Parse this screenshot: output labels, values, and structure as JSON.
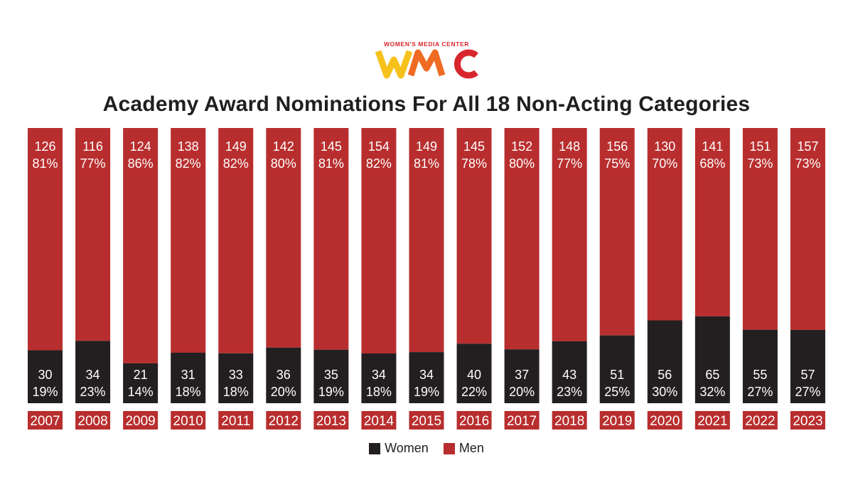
{
  "logo": {
    "text": "WOMEN'S MEDIA CENTER",
    "letters": "WMC"
  },
  "colors": {
    "women": "#231f20",
    "men": "#b82e2e",
    "logo_red": "#d7262d",
    "logo_yellow": "#f6c11a",
    "logo_orange": "#ef6b23"
  },
  "chart_data": {
    "type": "bar",
    "stacked": "percent",
    "title": "Academy Award Nominations For All 18 Non-Acting Categories",
    "categories": [
      "2007",
      "2008",
      "2009",
      "2010",
      "2011",
      "2012",
      "2013",
      "2014",
      "2015",
      "2016",
      "2017",
      "2018",
      "2019",
      "2020",
      "2021",
      "2022",
      "2023"
    ],
    "series": [
      {
        "name": "Women",
        "color": "#231f20",
        "values": [
          30,
          34,
          21,
          31,
          33,
          36,
          35,
          34,
          34,
          40,
          37,
          43,
          51,
          56,
          65,
          55,
          57
        ],
        "percent_labels": [
          "19%",
          "23%",
          "14%",
          "18%",
          "18%",
          "20%",
          "19%",
          "18%",
          "19%",
          "22%",
          "20%",
          "23%",
          "25%",
          "30%",
          "32%",
          "27%",
          "27%"
        ]
      },
      {
        "name": "Men",
        "color": "#b82e2e",
        "values": [
          126,
          116,
          124,
          138,
          149,
          142,
          145,
          154,
          149,
          145,
          152,
          148,
          156,
          130,
          141,
          151,
          157
        ],
        "percent_labels": [
          "81%",
          "77%",
          "86%",
          "82%",
          "82%",
          "80%",
          "81%",
          "82%",
          "81%",
          "78%",
          "80%",
          "77%",
          "75%",
          "70%",
          "68%",
          "73%",
          "73%"
        ]
      }
    ],
    "legend": "bottom-center",
    "grid": false
  }
}
